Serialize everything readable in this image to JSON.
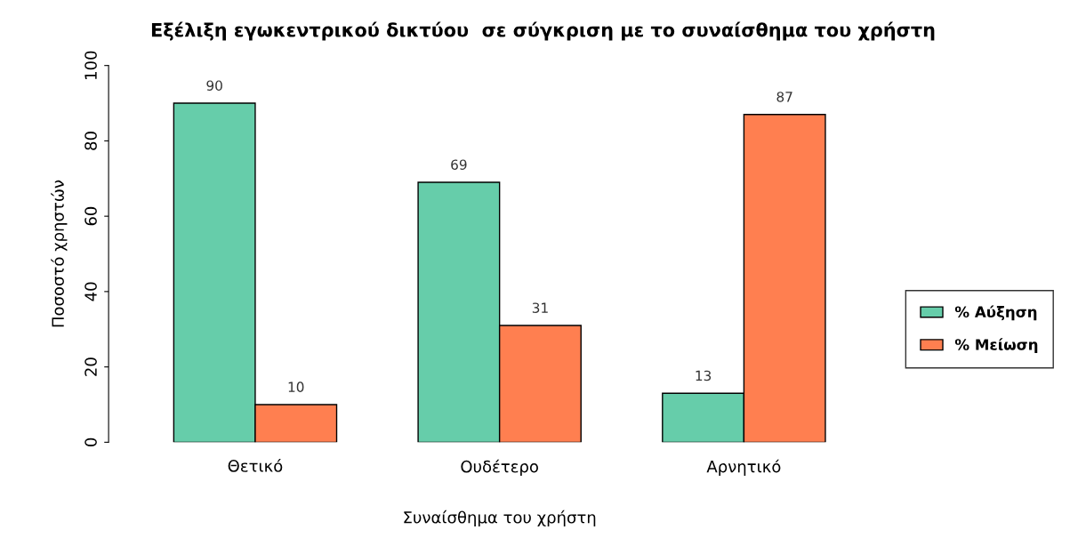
{
  "chart_data": {
    "type": "bar",
    "title": "Εξέλιξη εγωκεντρικού δικτύου  σε σύγκριση με το συναίσθημα του χρήστη",
    "xlabel": "Συναίσθημα του χρήστη",
    "ylabel": "Ποσοστό χρηστών",
    "categories": [
      "Θετικό",
      "Ουδέτερο",
      "Αρνητικό"
    ],
    "series": [
      {
        "name": "% Αύξηση",
        "color": "#66cdaa",
        "values": [
          90,
          69,
          13
        ]
      },
      {
        "name": "% Μείωση",
        "color": "#ff7f50",
        "values": [
          10,
          31,
          87
        ]
      }
    ],
    "ylim": [
      0,
      100
    ],
    "yticks": [
      0,
      20,
      40,
      60,
      80,
      100
    ],
    "data_labels": true,
    "legend": "right",
    "grid": false
  }
}
